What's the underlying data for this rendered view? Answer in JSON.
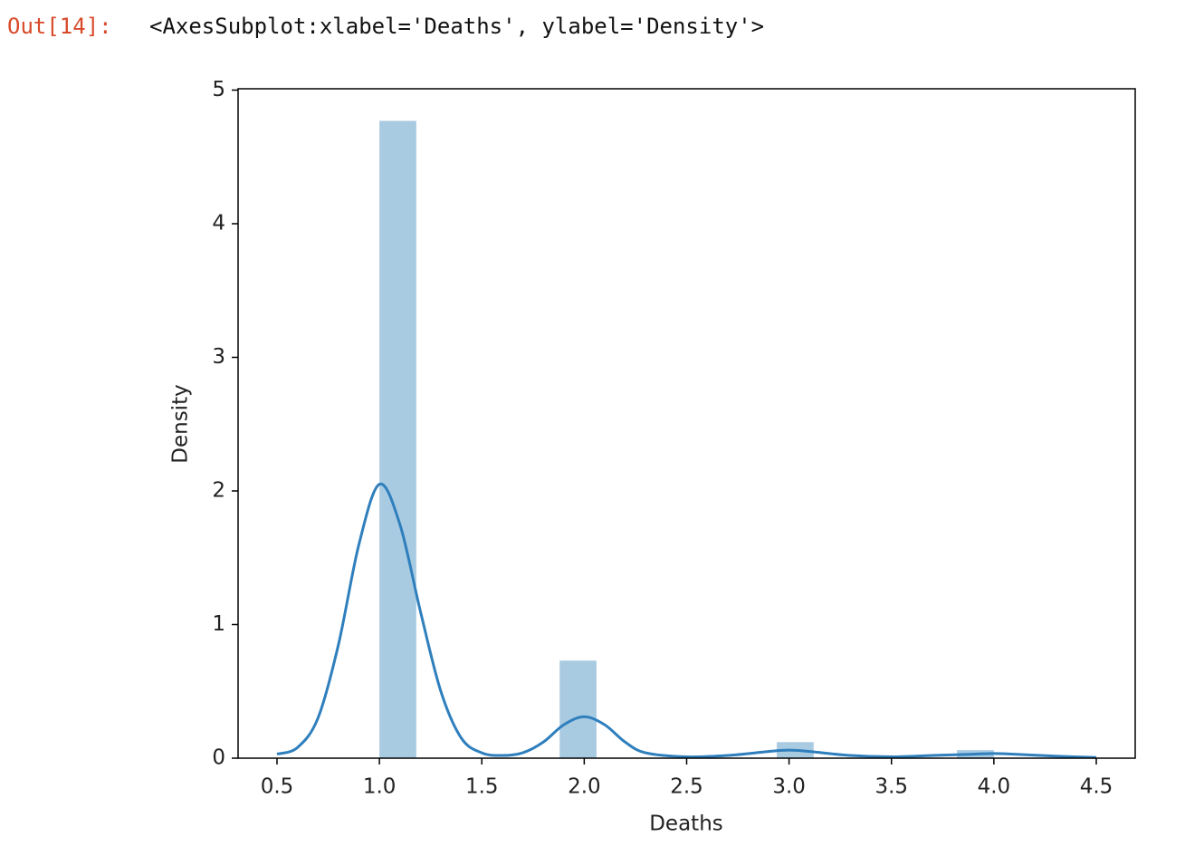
{
  "notebook": {
    "prompt": "Out[14]:",
    "output": "<AxesSubplot:xlabel='Deaths', ylabel='Density'>"
  },
  "chart_data": {
    "type": "histogram",
    "xlabel": "Deaths",
    "ylabel": "Density",
    "bins": [
      1,
      1.18,
      1.35,
      1.53,
      1.71,
      1.88,
      2.06,
      2.24,
      2.41,
      2.59,
      2.76,
      2.94,
      3.12,
      3.29,
      3.47,
      3.65,
      3.82,
      4.0
    ],
    "counts": [
      4.77,
      0,
      0,
      0,
      0,
      0.73,
      0,
      0,
      0,
      0,
      0,
      0.12,
      0,
      0,
      0,
      0,
      0.06
    ],
    "color": "#a9cbe2",
    "kde": {
      "color": "#2f7fbd",
      "x": [
        0.5,
        0.6,
        0.7,
        0.8,
        0.9,
        1.0,
        1.1,
        1.2,
        1.3,
        1.4,
        1.5,
        1.6,
        1.7,
        1.8,
        1.9,
        2.0,
        2.1,
        2.2,
        2.3,
        2.5,
        2.7,
        2.9,
        3.0,
        3.1,
        3.3,
        3.5,
        3.7,
        3.9,
        4.0,
        4.1,
        4.3,
        4.5
      ],
      "values": [
        0.03,
        0.08,
        0.3,
        0.85,
        1.6,
        2.05,
        1.75,
        1.1,
        0.5,
        0.15,
        0.04,
        0.02,
        0.04,
        0.12,
        0.25,
        0.31,
        0.25,
        0.12,
        0.04,
        0.01,
        0.02,
        0.05,
        0.06,
        0.05,
        0.02,
        0.01,
        0.02,
        0.03,
        0.035,
        0.03,
        0.015,
        0.005
      ]
    },
    "xlim": [
      0.31,
      4.69
    ],
    "ylim": [
      0,
      5.01
    ],
    "xticks": [
      0.5,
      {
        "value": 1,
        "label": "1.0"
      },
      1.5,
      {
        "value": 2,
        "label": "2.0"
      },
      2.5,
      {
        "value": 3,
        "label": "3.0"
      },
      3.5,
      {
        "value": 4,
        "label": "4.0"
      },
      4.5
    ],
    "yticks": [
      0,
      1,
      2,
      3,
      4,
      5
    ]
  }
}
